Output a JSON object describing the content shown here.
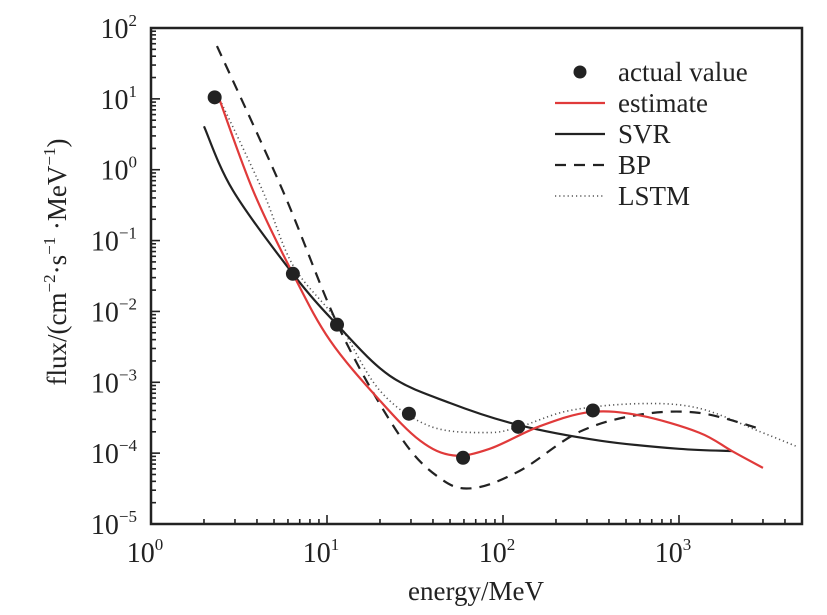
{
  "chart_data": {
    "type": "line",
    "title": "",
    "xlabel": "energy/MeV",
    "ylabel": "flux/(cm⁻²·s⁻¹ ·MeV⁻¹)",
    "ylabel_parts": {
      "prefix": "flux/(cm",
      "sup1": "−2",
      "mid1": "·s",
      "sup2": "−1",
      "mid2": " ·MeV",
      "sup3": "−1",
      "suffix": ")"
    },
    "xscale": "log",
    "yscale": "log",
    "xlim": [
      1,
      5000
    ],
    "ylim": [
      1e-05,
      100
    ],
    "grid": false,
    "legend_position": "top-right",
    "x_ticks": [
      {
        "base": "10",
        "exp": "0",
        "value": 1
      },
      {
        "base": "10",
        "exp": "1",
        "value": 10
      },
      {
        "base": "10",
        "exp": "2",
        "value": 100
      },
      {
        "base": "10",
        "exp": "3",
        "value": 1000
      }
    ],
    "y_ticks": [
      {
        "base": "10",
        "exp": "2",
        "value": 100
      },
      {
        "base": "10",
        "exp": "1",
        "value": 10
      },
      {
        "base": "10",
        "exp": "0",
        "value": 1
      },
      {
        "base": "10",
        "exp": "−1",
        "value": 0.1
      },
      {
        "base": "10",
        "exp": "−2",
        "value": 0.01
      },
      {
        "base": "10",
        "exp": "−3",
        "value": 0.001
      },
      {
        "base": "10",
        "exp": "−4",
        "value": 0.0001
      },
      {
        "base": "10",
        "exp": "−5",
        "value": 1e-05
      }
    ],
    "series": [
      {
        "name": "actual value",
        "style": "marker",
        "color": "#222222",
        "x": [
          2.3,
          6.4,
          11.4,
          29.2,
          59.3,
          122,
          324
        ],
        "y": [
          10.5,
          0.034,
          0.0065,
          0.00036,
          8.6e-05,
          0.000235,
          0.0004
        ]
      },
      {
        "name": "estimate",
        "style": "solid",
        "color": "#e03a3a",
        "x": [
          2.4,
          3.8,
          6.4,
          10.4,
          20,
          33.8,
          52,
          84,
          162,
          313,
          600,
          1300,
          2000,
          3000
        ],
        "y": [
          11.3,
          0.51,
          0.034,
          0.0039,
          0.00055,
          0.00015,
          9.3e-05,
          0.000115,
          0.00024,
          0.00038,
          0.00034,
          0.000195,
          0.000107,
          6.2e-05
        ]
      },
      {
        "name": "SVR",
        "style": "solid",
        "color": "#222222",
        "x": [
          2.0,
          2.92,
          6.4,
          11.4,
          22.7,
          50,
          122,
          356,
          1000,
          2000
        ],
        "y": [
          4.1,
          0.51,
          0.034,
          0.0065,
          0.00124,
          0.00051,
          0.00025,
          0.00015,
          0.000115,
          0.000107
        ]
      },
      {
        "name": "BP",
        "style": "dashed",
        "color": "#222222",
        "x": [
          2.37,
          5.6,
          11.9,
          26,
          44,
          67,
          124,
          272,
          600,
          1300,
          2900
        ],
        "y": [
          55.6,
          0.51,
          0.0054,
          0.000174,
          4.4e-05,
          3.2e-05,
          5.6e-05,
          0.0002,
          0.00035,
          0.00037,
          0.00022
        ]
      },
      {
        "name": "LSTM",
        "style": "dotted",
        "color": "#555555",
        "x": [
          2.46,
          4.3,
          6.4,
          11.4,
          20,
          38.5,
          81,
          124,
          240,
          600,
          1300,
          2900,
          4600
        ],
        "y": [
          9.8,
          0.51,
          0.045,
          0.0074,
          0.00076,
          0.00024,
          0.000195,
          0.000235,
          0.0004,
          0.0005,
          0.00043,
          0.0002,
          0.000126
        ]
      }
    ]
  }
}
